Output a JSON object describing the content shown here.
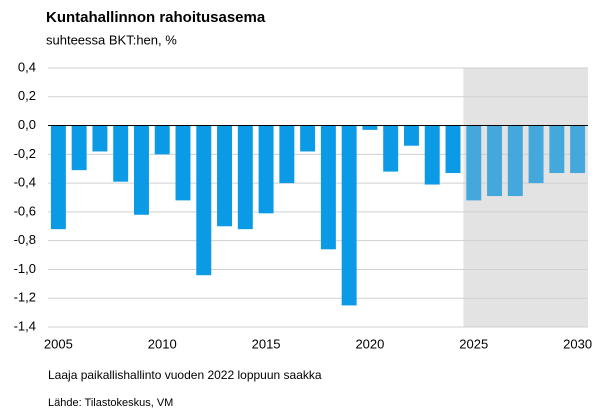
{
  "chart_data": {
    "type": "bar",
    "title": "Kuntahallinnon rahoitusasema",
    "subtitle": "suhteessa BKT:hen, %",
    "notes": [
      "Laaja paikallishallinto  vuoden 2022 loppuun  saakka",
      "Lähde: Tilastokeskus, VM"
    ],
    "x": [
      2005,
      2006,
      2007,
      2008,
      2009,
      2010,
      2011,
      2012,
      2013,
      2014,
      2015,
      2016,
      2017,
      2018,
      2019,
      2020,
      2021,
      2022,
      2023,
      2024,
      2025,
      2026,
      2027,
      2028,
      2029,
      2030
    ],
    "values": [
      -0.72,
      -0.31,
      -0.18,
      -0.39,
      -0.62,
      -0.2,
      -0.52,
      -1.04,
      -0.7,
      -0.72,
      -0.61,
      -0.4,
      -0.18,
      -0.86,
      -1.25,
      -0.03,
      -0.32,
      -0.14,
      -0.41,
      -0.33,
      -0.52,
      -0.49,
      -0.49,
      -0.4,
      -0.33,
      -0.33
    ],
    "color": "#0a9ae6",
    "forecast_color": "#45a8dc",
    "forecast_start": 2025,
    "shade_color": "#e3e3e3",
    "xlim": [
      2004.5,
      2030.5
    ],
    "xticks": [
      2005,
      2010,
      2015,
      2020,
      2025,
      2030
    ],
    "ylim": [
      -1.4,
      0.4
    ],
    "yticks": [
      {
        "value": 0.4,
        "label": "0,4"
      },
      {
        "value": 0.2,
        "label": "0,2"
      },
      {
        "value": 0,
        "label": "0,0"
      },
      {
        "value": -0.2,
        "label": "-0,2"
      },
      {
        "value": -0.4,
        "label": "-0,4"
      },
      {
        "value": -0.6,
        "label": "-0,6"
      },
      {
        "value": -0.8,
        "label": "-0,8"
      },
      {
        "value": -1,
        "label": "-1,0"
      },
      {
        "value": -1.2,
        "label": "-1,2"
      },
      {
        "value": -1.4,
        "label": "-1,4"
      }
    ],
    "grid": true
  }
}
